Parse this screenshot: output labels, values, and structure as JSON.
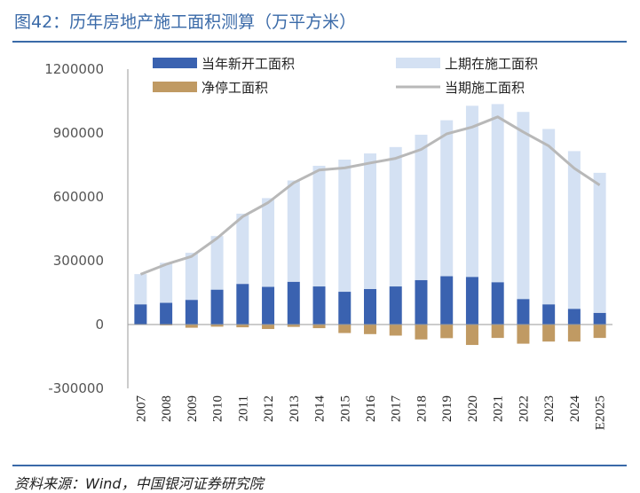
{
  "header": {
    "title": "图42：历年房地产施工面积测算（万平方米）"
  },
  "footer": {
    "source": "资料来源：Wind，中国银河证券研究院"
  },
  "chart_data": {
    "type": "bar",
    "categories": [
      "2007",
      "2008",
      "2009",
      "2010",
      "2011",
      "2012",
      "2013",
      "2014",
      "2015",
      "2016",
      "2017",
      "2018",
      "2019",
      "2020",
      "2021",
      "2022",
      "2023",
      "2024",
      "E2025"
    ],
    "series": [
      {
        "name": "当年新开工面积",
        "kind": "bar",
        "color": "#3a62b0",
        "values": [
          95000,
          102000,
          116000,
          164000,
          191000,
          177000,
          201000,
          179000,
          154000,
          167000,
          179000,
          209000,
          227000,
          224000,
          199000,
          120000,
          95000,
          74000,
          55000
        ]
      },
      {
        "name": "上期在施工面积",
        "kind": "bar",
        "color": "#d4e1f3",
        "values": [
          142000,
          188000,
          221000,
          252000,
          330000,
          417000,
          476000,
          567000,
          621000,
          637000,
          655000,
          683000,
          733000,
          804000,
          837000,
          879000,
          824000,
          741000,
          658000
        ]
      },
      {
        "name": "净停工面积",
        "kind": "bar",
        "color": "#c09a63",
        "values": [
          0,
          -4000,
          -15000,
          -10000,
          -13000,
          -21000,
          -11000,
          -17000,
          -40000,
          -45000,
          -52000,
          -70000,
          -64000,
          -96000,
          -63000,
          -90000,
          -80000,
          -80000,
          -63000
        ]
      },
      {
        "name": "当期施工面积",
        "kind": "line",
        "color": "#b8b8b8",
        "values": [
          236000,
          283000,
          320000,
          406000,
          507000,
          573000,
          666000,
          726000,
          736000,
          759000,
          781000,
          823000,
          896000,
          928000,
          976000,
          905000,
          839000,
          734000,
          655000
        ]
      }
    ],
    "ylim": [
      -300000,
      1200000
    ],
    "yticks": [
      "-300000",
      "0",
      "300000",
      "600000",
      "900000",
      "1200000"
    ],
    "legend_position": "top",
    "grid": false
  }
}
